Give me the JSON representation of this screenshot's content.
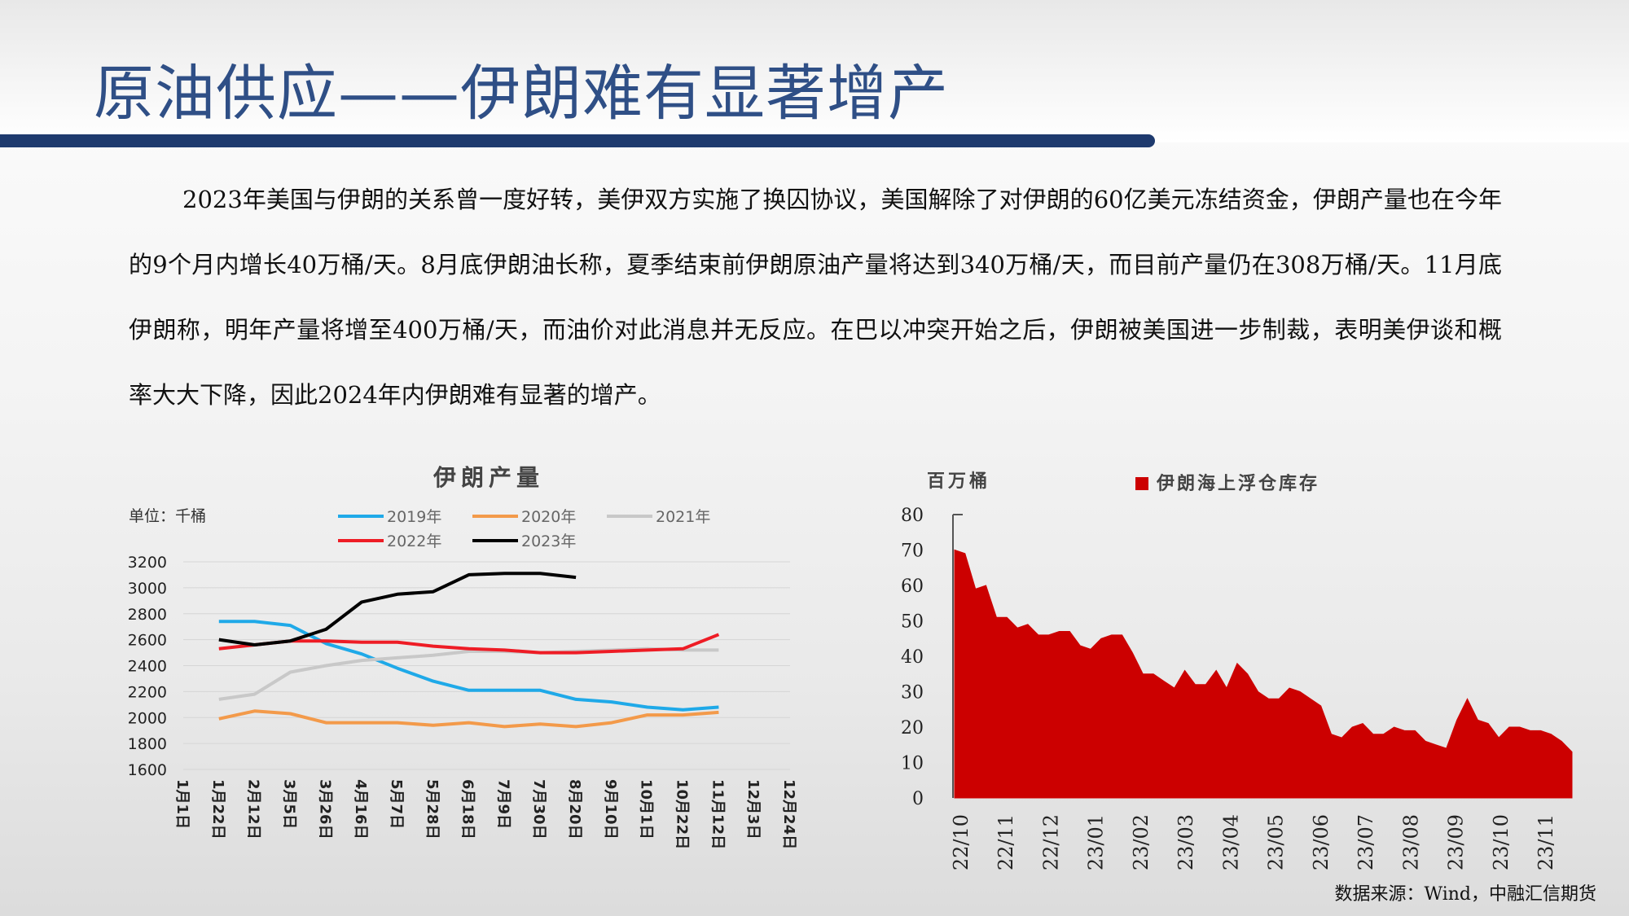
{
  "title": "原油供应——伊朗难有显著增产",
  "body_text": "2023年美国与伊朗的关系曾一度好转，美伊双方实施了换囚协议，美国解除了对伊朗的60亿美元冻结资金，伊朗产量也在今年的9个月内增长40万桶/天。8月底伊朗油长称，夏季结束前伊朗原油产量将达到340万桶/天，而目前产量仍在308万桶/天。11月底伊朗称，明年产量将增至400万桶/天，而油价对此消息并无反应。在巴以冲突开始之后，伊朗被美国进一步制裁，表明美伊谈和概率大大下降，因此2024年内伊朗难有显著的增产。",
  "source": "数据来源：Wind，中融汇信期货",
  "chart_data": [
    {
      "type": "line",
      "title": "伊朗产量",
      "unit_label": "单位：千桶",
      "ylim": [
        1600,
        3200
      ],
      "yticks": [
        1600,
        1800,
        2000,
        2200,
        2400,
        2600,
        2800,
        3000,
        3200
      ],
      "grid": true,
      "legend_position": "top",
      "x": [
        "1月1日",
        "1月22日",
        "2月12日",
        "3月5日",
        "3月26日",
        "4月16日",
        "5月7日",
        "5月28日",
        "6月18日",
        "7月9日",
        "7月30日",
        "8月20日",
        "9月10日",
        "10月1日",
        "10月22日",
        "11月12日",
        "12月3日",
        "12月24日"
      ],
      "series": [
        {
          "name": "2019年",
          "color": "#1fa9e8",
          "values": [
            null,
            2740,
            2740,
            2710,
            2570,
            2490,
            2380,
            2280,
            2210,
            2210,
            2210,
            2140,
            2120,
            2080,
            2060,
            2080,
            null,
            null
          ]
        },
        {
          "name": "2020年",
          "color": "#f39a4a",
          "values": [
            null,
            1990,
            2050,
            2030,
            1960,
            1960,
            1960,
            1940,
            1960,
            1930,
            1950,
            1930,
            1960,
            2020,
            2020,
            2040,
            null,
            null
          ]
        },
        {
          "name": "2021年",
          "color": "#c8c8c8",
          "values": [
            null,
            2140,
            2180,
            2350,
            2400,
            2440,
            2460,
            2480,
            2510,
            2510,
            2500,
            2510,
            2520,
            2530,
            2520,
            2520,
            null,
            null
          ]
        },
        {
          "name": "2022年",
          "color": "#ee1c25",
          "values": [
            null,
            2530,
            2560,
            2590,
            2590,
            2580,
            2580,
            2550,
            2530,
            2520,
            2500,
            2500,
            2510,
            2520,
            2530,
            2640,
            null,
            null
          ]
        },
        {
          "name": "2023年",
          "color": "#000000",
          "values": [
            null,
            2600,
            2560,
            2590,
            2680,
            2890,
            2950,
            2970,
            3100,
            3110,
            3110,
            3080,
            null,
            null,
            null,
            null,
            null,
            null
          ]
        }
      ]
    },
    {
      "type": "area",
      "title": "伊朗海上浮仓库存",
      "ylabel": "百万桶",
      "ylim": [
        0,
        80
      ],
      "yticks": [
        0,
        10,
        20,
        30,
        40,
        50,
        60,
        70,
        80
      ],
      "color": "#cc0000",
      "legend_position": "top",
      "x_ticks": [
        "22/10",
        "22/11",
        "22/12",
        "23/01",
        "23/02",
        "23/03",
        "23/04",
        "23/05",
        "23/06",
        "23/07",
        "23/08",
        "23/09",
        "23/10",
        "23/11"
      ],
      "series": [
        {
          "name": "伊朗海上浮仓库存",
          "values": [
            70,
            69,
            59,
            60,
            51,
            51,
            48,
            49,
            46,
            46,
            47,
            47,
            43,
            42,
            45,
            46,
            46,
            41,
            35,
            35,
            33,
            31,
            36,
            32,
            32,
            36,
            31,
            38,
            35,
            30,
            28,
            28,
            31,
            30,
            28,
            26,
            18,
            17,
            20,
            21,
            18,
            18,
            20,
            19,
            19,
            16,
            15,
            14,
            22,
            28,
            22,
            21,
            17,
            20,
            20,
            19,
            19,
            18,
            16,
            13
          ]
        }
      ]
    }
  ]
}
